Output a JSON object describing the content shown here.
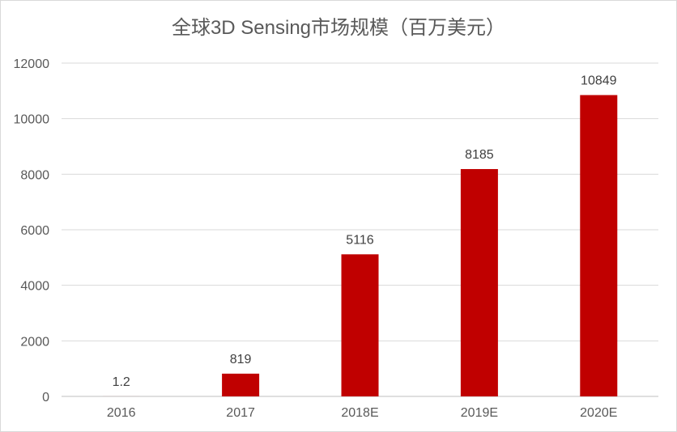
{
  "chart_data": {
    "type": "bar",
    "title": "全球3D Sensing市场规模（百万美元）",
    "categories": [
      "2016",
      "2017",
      "2018E",
      "2019E",
      "2020E"
    ],
    "values": [
      1.2,
      819,
      5116,
      8185,
      10849
    ],
    "xlabel": "",
    "ylabel": "",
    "ylim": [
      0,
      12000
    ],
    "yticks": [
      0,
      2000,
      4000,
      6000,
      8000,
      10000,
      12000
    ],
    "grid": true,
    "legend": "none",
    "data_labels": true,
    "colors": {
      "bar": "#C00000",
      "grid": "#D9D9D9",
      "axis": "#BFBFBF",
      "tick_text": "#595959",
      "label_text": "#404040"
    }
  }
}
